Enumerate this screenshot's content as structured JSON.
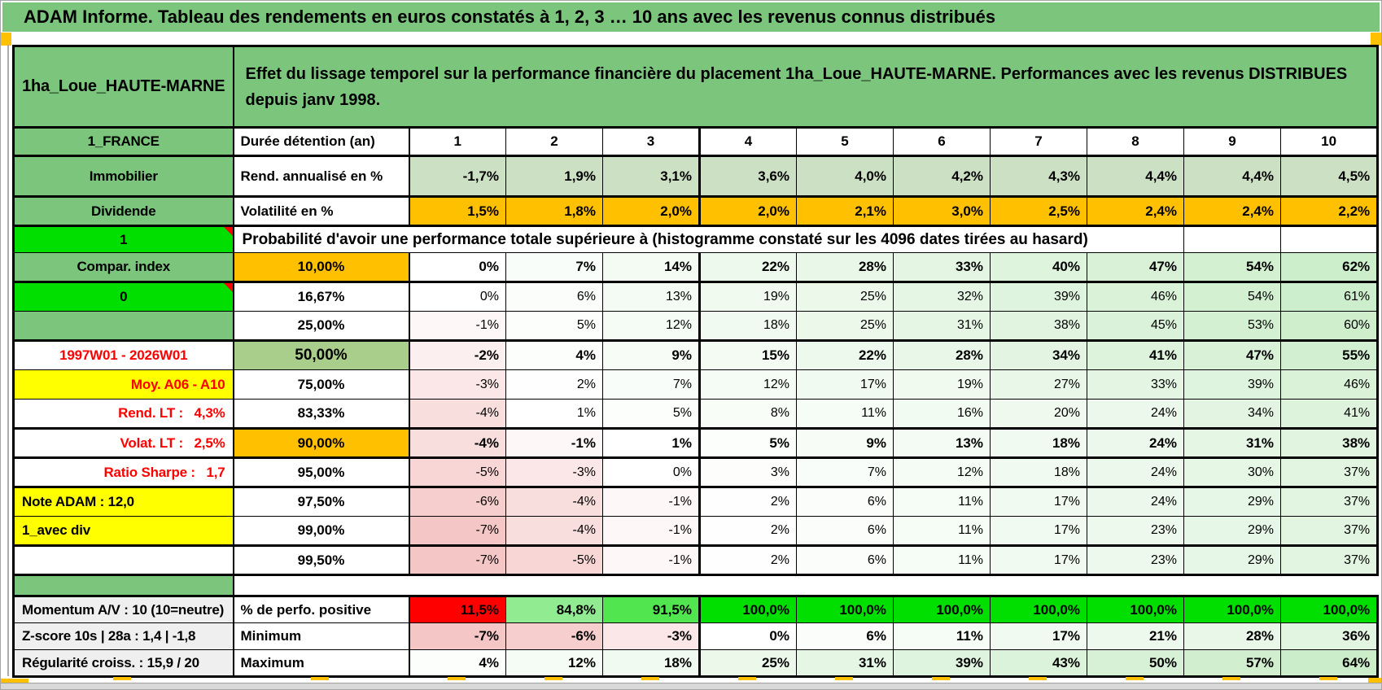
{
  "title": "ADAM Informe. Tableau des rendements en euros constatés à 1, 2, 3 … 10 ans avec les revenus connus distribués",
  "header": {
    "placement": "1ha_Loue_HAUTE-MARNE",
    "description": "Effet du lissage temporel sur la performance financière du placement 1ha_Loue_HAUTE-MARNE. Performances avec les revenus DISTRIBUES depuis janv 1998."
  },
  "grid": {
    "col1_header": "1_FRANCE",
    "col2_header": "Durée détention (an)",
    "columns": [
      "1",
      "2",
      "3",
      "4",
      "5",
      "6",
      "7",
      "8",
      "9",
      "10"
    ],
    "probability_flag": "1",
    "probability_caption": "Probabilité d'avoir une performance totale supérieure à (histogramme constaté sur les 4096 dates tirées au hasard)",
    "top_rows": [
      {
        "name": "immobilier",
        "left": "Immobilier",
        "left_bg": "green",
        "label": "Rend. annualisé en %",
        "label_align": "left",
        "values": [
          "-1,7%",
          "1,9%",
          "3,1%",
          "3,6%",
          "4,0%",
          "4,2%",
          "4,3%",
          "4,4%",
          "4,4%",
          "4,5%"
        ],
        "cell_style": "sage",
        "bold": true,
        "thick_top": true,
        "tall": true
      },
      {
        "name": "dividende",
        "left": "Dividende",
        "left_bg": "green",
        "label": "Volatilité en %",
        "label_align": "left",
        "values": [
          "1,5%",
          "1,8%",
          "2,0%",
          "2,0%",
          "2,1%",
          "3,0%",
          "2,5%",
          "2,4%",
          "2,4%",
          "2,2%"
        ],
        "cell_style": "orange",
        "bold": true,
        "thick_top": true,
        "mid": true
      }
    ],
    "percentile_rows": [
      {
        "name": "p10",
        "left": "Compar. index",
        "left_bg": "green",
        "label": "10,00%",
        "label_bg": "orange",
        "values": [
          "0%",
          "7%",
          "14%",
          "22%",
          "28%",
          "33%",
          "40%",
          "47%",
          "54%",
          "62%"
        ],
        "cell_style": "scale",
        "bold": true
      },
      {
        "name": "p16-67",
        "left": "0",
        "left_bg": "bgreen",
        "comment": true,
        "label": "16,67%",
        "values": [
          "0%",
          "6%",
          "13%",
          "19%",
          "25%",
          "32%",
          "39%",
          "46%",
          "54%",
          "61%"
        ],
        "cell_style": "scale",
        "thick_top": true
      },
      {
        "name": "p25",
        "left": "",
        "left_bg": "green",
        "label": "25,00%",
        "values": [
          "-1%",
          "5%",
          "12%",
          "18%",
          "25%",
          "31%",
          "38%",
          "45%",
          "53%",
          "60%"
        ],
        "cell_style": "scale"
      },
      {
        "name": "p50",
        "left": "1997W01 - 2026W01",
        "left_bg": "white",
        "left_red": true,
        "label": "50,00%",
        "label_bg": "green50",
        "big": true,
        "values": [
          "-2%",
          "4%",
          "9%",
          "15%",
          "22%",
          "28%",
          "34%",
          "41%",
          "47%",
          "55%"
        ],
        "cell_style": "scale",
        "bold": true,
        "thick_top": true
      },
      {
        "name": "p75",
        "left": "Moy. A06 - A10",
        "left_bg": "yellow",
        "left_red": true,
        "left_align": "right",
        "label": "75,00%",
        "values": [
          "-3%",
          "2%",
          "7%",
          "12%",
          "17%",
          "19%",
          "27%",
          "33%",
          "39%",
          "46%"
        ],
        "cell_style": "scale"
      },
      {
        "name": "p83-33",
        "left": "Rend. LT :   4,3%",
        "left_bg": "white",
        "left_red": true,
        "left_align": "right",
        "label": "83,33%",
        "values": [
          "-4%",
          "1%",
          "5%",
          "8%",
          "11%",
          "16%",
          "20%",
          "24%",
          "34%",
          "41%"
        ],
        "cell_style": "scale"
      },
      {
        "name": "p90",
        "left": "Volat. LT :   2,5%",
        "left_bg": "white",
        "left_red": true,
        "left_align": "right",
        "label": "90,00%",
        "label_bg": "orange",
        "values": [
          "-4%",
          "-1%",
          "1%",
          "5%",
          "9%",
          "13%",
          "18%",
          "24%",
          "31%",
          "38%"
        ],
        "cell_style": "scale",
        "bold": true,
        "thick_top": true
      },
      {
        "name": "p95",
        "left": "Ratio Sharpe :   1,7",
        "left_bg": "white",
        "left_red": true,
        "left_align": "right",
        "label": "95,00%",
        "values": [
          "-5%",
          "-3%",
          "0%",
          "3%",
          "7%",
          "12%",
          "18%",
          "24%",
          "30%",
          "37%"
        ],
        "cell_style": "scale",
        "thick_top": true
      },
      {
        "name": "p97-50",
        "left": "Note ADAM : 12,0",
        "left_bg": "yellow",
        "left_align": "left",
        "label": "97,50%",
        "values": [
          "-6%",
          "-4%",
          "-1%",
          "2%",
          "6%",
          "11%",
          "17%",
          "24%",
          "29%",
          "37%"
        ],
        "cell_style": "scale",
        "thick_top": true
      },
      {
        "name": "p99",
        "left": "1_avec div",
        "left_bg": "yellow",
        "left_align": "left",
        "label": "99,00%",
        "values": [
          "-7%",
          "-4%",
          "-1%",
          "2%",
          "6%",
          "11%",
          "17%",
          "23%",
          "29%",
          "37%"
        ],
        "cell_style": "scale"
      },
      {
        "name": "p99-50",
        "left": "",
        "left_bg": "white",
        "label": "99,50%",
        "values": [
          "-7%",
          "-5%",
          "-1%",
          "2%",
          "6%",
          "11%",
          "17%",
          "23%",
          "29%",
          "37%"
        ],
        "cell_style": "scale",
        "thick_top": true,
        "thick_bottom": true
      }
    ],
    "bottom_rows": [
      {
        "name": "perfo-positive",
        "left": "Momentum A/V : 10 (10=neutre)",
        "left_bg": "gray",
        "left_align": "left",
        "label": "% de perfo. positive",
        "label_align": "left",
        "values": [
          "11,5%",
          "84,8%",
          "91,5%",
          "100,0%",
          "100,0%",
          "100,0%",
          "100,0%",
          "100,0%",
          "100,0%",
          "100,0%"
        ],
        "cell_style": "perfo",
        "bold": true,
        "thick_top": true
      },
      {
        "name": "minimum",
        "left": "Z-score 10s | 28a : 1,4 | -1,8",
        "left_bg": "gray",
        "left_align": "left",
        "label": "Minimum",
        "label_align": "left",
        "values": [
          "-7%",
          "-6%",
          "-3%",
          "0%",
          "6%",
          "11%",
          "17%",
          "21%",
          "28%",
          "36%"
        ],
        "cell_style": "scale",
        "bold": true
      },
      {
        "name": "maximum",
        "left": "Régularité croiss. : 15,9 / 20",
        "left_bg": "gray",
        "left_align": "left",
        "label": "Maximum",
        "label_align": "left",
        "values": [
          "4%",
          "12%",
          "18%",
          "25%",
          "31%",
          "39%",
          "43%",
          "50%",
          "57%",
          "64%"
        ],
        "cell_style": "scale",
        "bold": true,
        "thick_bottom": true
      }
    ]
  },
  "colors": {
    "accent_green": "#7CC57D",
    "bright_green": "#00DF00",
    "orange": "#FFC000",
    "yellow": "#FFFF00",
    "mid_green": "#A9CE8C",
    "sage": "#CCE0C4",
    "neg_pink": "#F5C6C6",
    "pos_green": "#CBEDC9",
    "perfo_light_green": "#BFEFBD",
    "red": "#FF0000",
    "gray_label": "#EFEFEF"
  }
}
